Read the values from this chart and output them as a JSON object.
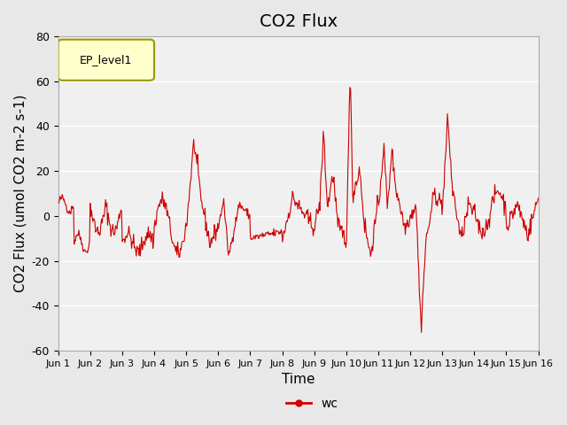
{
  "title": "CO2 Flux",
  "ylabel": "CO2 Flux (umol CO2 m-2 s-1)",
  "xlabel": "Time",
  "ylim": [
    -60,
    80
  ],
  "xlim": [
    0,
    15
  ],
  "yticks": [
    -60,
    -40,
    -20,
    0,
    20,
    40,
    60,
    80
  ],
  "xtick_labels": [
    "Jun 1",
    "Jun 2",
    "Jun 3",
    "Jun 4",
    "Jun 5",
    "Jun 6",
    "Jun 7",
    "Jun 8",
    "Jun 9",
    "Jun 10",
    "Jun 11",
    "Jun 12",
    "Jun 13",
    "Jun 14",
    "Jun 15",
    "Jun 16"
  ],
  "line_color": "#cc0000",
  "line_label": "wc",
  "bg_color": "#e8e8e8",
  "plot_bg_color": "#f0f0f0",
  "legend_label": "EP_level1",
  "legend_facecolor": "#ffffcc",
  "legend_edgecolor": "#999900",
  "title_fontsize": 14,
  "axis_label_fontsize": 11
}
